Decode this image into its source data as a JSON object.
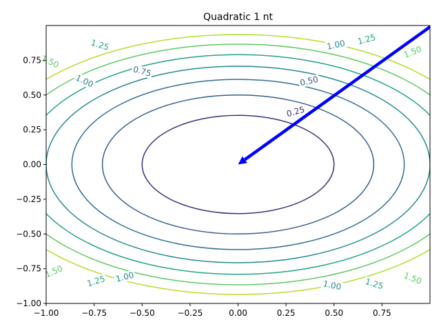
{
  "chart_data": {
    "type": "contour",
    "title": "Quadratic 1 nt",
    "xlabel": "",
    "ylabel": "",
    "xlim": [
      -1.0,
      1.0
    ],
    "ylim": [
      -1.0,
      1.0
    ],
    "grid": false,
    "function": "f(x,y) = x^2 + 2*y^2",
    "xticks": [
      "−1.00",
      "−0.75",
      "−0.50",
      "−0.25",
      "0.00",
      "0.25",
      "0.50",
      "0.75"
    ],
    "xtick_values": [
      -1.0,
      -0.75,
      -0.5,
      -0.25,
      0.0,
      0.25,
      0.5,
      0.75
    ],
    "yticks": [
      "−1.00",
      "−0.75",
      "−0.50",
      "−0.25",
      "0.00",
      "0.25",
      "0.50",
      "0.75"
    ],
    "ytick_values": [
      -1.0,
      -0.75,
      -0.5,
      -0.25,
      0.0,
      0.25,
      0.5,
      0.75
    ],
    "levels": [
      {
        "value": 0.25,
        "label": "0.25",
        "color": "#3b2f7f"
      },
      {
        "value": 0.5,
        "label": "0.50",
        "color": "#355d8a"
      },
      {
        "value": 0.75,
        "label": "0.75",
        "color": "#2e6e8e"
      },
      {
        "value": 1.0,
        "label": "1.00",
        "color": "#23898e"
      },
      {
        "value": 1.25,
        "label": "1.25",
        "color": "#21a386"
      },
      {
        "value": 1.5,
        "label": "1.50",
        "color": "#5ec962"
      },
      {
        "value": 1.75,
        "label": "",
        "color": "#b5de2b"
      }
    ],
    "contour_labels": [
      {
        "level": 0.25,
        "text": "0.25",
        "x": 0.3,
        "y": 0.38
      },
      {
        "level": 0.5,
        "text": "0.50",
        "x": 0.37,
        "y": 0.6
      },
      {
        "level": 0.75,
        "text": "0.75",
        "x": -0.5,
        "y": 0.67
      },
      {
        "level": 1.0,
        "text": "1.00",
        "x": -0.8,
        "y": 0.6
      },
      {
        "level": 1.0,
        "text": "1.00",
        "x": 0.51,
        "y": 0.86
      },
      {
        "level": 1.0,
        "text": "1.00",
        "x": -0.59,
        "y": -0.81
      },
      {
        "level": 1.0,
        "text": "1.00",
        "x": 0.49,
        "y": -0.87
      },
      {
        "level": 1.25,
        "text": "1.25",
        "x": -0.72,
        "y": 0.86
      },
      {
        "level": 1.25,
        "text": "1.25",
        "x": 0.67,
        "y": 0.9
      },
      {
        "level": 1.25,
        "text": "1.25",
        "x": -0.74,
        "y": -0.84
      },
      {
        "level": 1.25,
        "text": "1.25",
        "x": 0.71,
        "y": -0.86
      },
      {
        "level": 1.5,
        "text": "1.50",
        "x": -0.98,
        "y": 0.74
      },
      {
        "level": 1.5,
        "text": "1.50",
        "x": 0.91,
        "y": 0.81
      },
      {
        "level": 1.5,
        "text": "1.50",
        "x": -0.96,
        "y": -0.77
      },
      {
        "level": 1.5,
        "text": "1.50",
        "x": 0.91,
        "y": -0.82
      }
    ],
    "arrow": {
      "from": [
        1.0,
        1.0
      ],
      "to": [
        0.0,
        0.0
      ],
      "color": "#0000ff"
    }
  }
}
